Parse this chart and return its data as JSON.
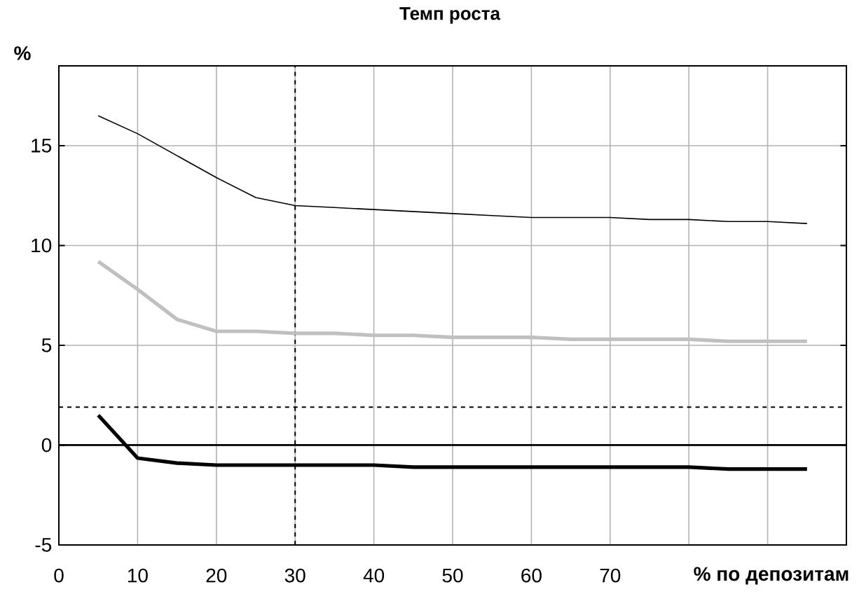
{
  "chart_data": {
    "type": "line",
    "title": "Темп роста",
    "xlabel": "% по депозитам",
    "ylabel": "%",
    "x": [
      5,
      10,
      15,
      20,
      25,
      30,
      35,
      40,
      45,
      50,
      55,
      60,
      65,
      70,
      75,
      80,
      85,
      90,
      95
    ],
    "series": [
      {
        "color": "#000000",
        "values": [
          16.5,
          15.6,
          14.5,
          13.4,
          12.4,
          12.0,
          11.9,
          11.8,
          11.7,
          11.6,
          11.5,
          11.4,
          11.4,
          11.4,
          11.3,
          11.3,
          11.2,
          11.2,
          11.1
        ]
      },
      {
        "color": "#c0c0c0",
        "values": [
          9.2,
          7.8,
          6.3,
          5.7,
          5.7,
          5.6,
          5.6,
          5.5,
          5.5,
          5.4,
          5.4,
          5.4,
          5.3,
          5.3,
          5.3,
          5.3,
          5.2,
          5.2,
          5.2
        ]
      },
      {
        "color": "#000000",
        "values": [
          1.5,
          -0.65,
          -0.9,
          -1.0,
          -1.0,
          -1.0,
          -1.0,
          -1.0,
          -1.1,
          -1.1,
          -1.1,
          -1.1,
          -1.1,
          -1.1,
          -1.1,
          -1.1,
          -1.2,
          -1.2,
          -1.2
        ]
      }
    ],
    "xlim": [
      0,
      100
    ],
    "ylim": [
      -5,
      19
    ],
    "xticks": [
      0,
      10,
      20,
      30,
      40,
      50,
      60,
      70,
      {
        "value": 80,
        "label": null
      },
      {
        "value": 90,
        "label": null
      }
    ],
    "yticks": [
      -5,
      0,
      5,
      10,
      15
    ],
    "ref_lines": [
      {
        "axis": "x",
        "value": 30,
        "line_style": "dashed"
      },
      {
        "axis": "y",
        "value": 1.9,
        "line_style": "dashed"
      }
    ],
    "grid": true,
    "marker": "none",
    "line_style": "solid"
  }
}
